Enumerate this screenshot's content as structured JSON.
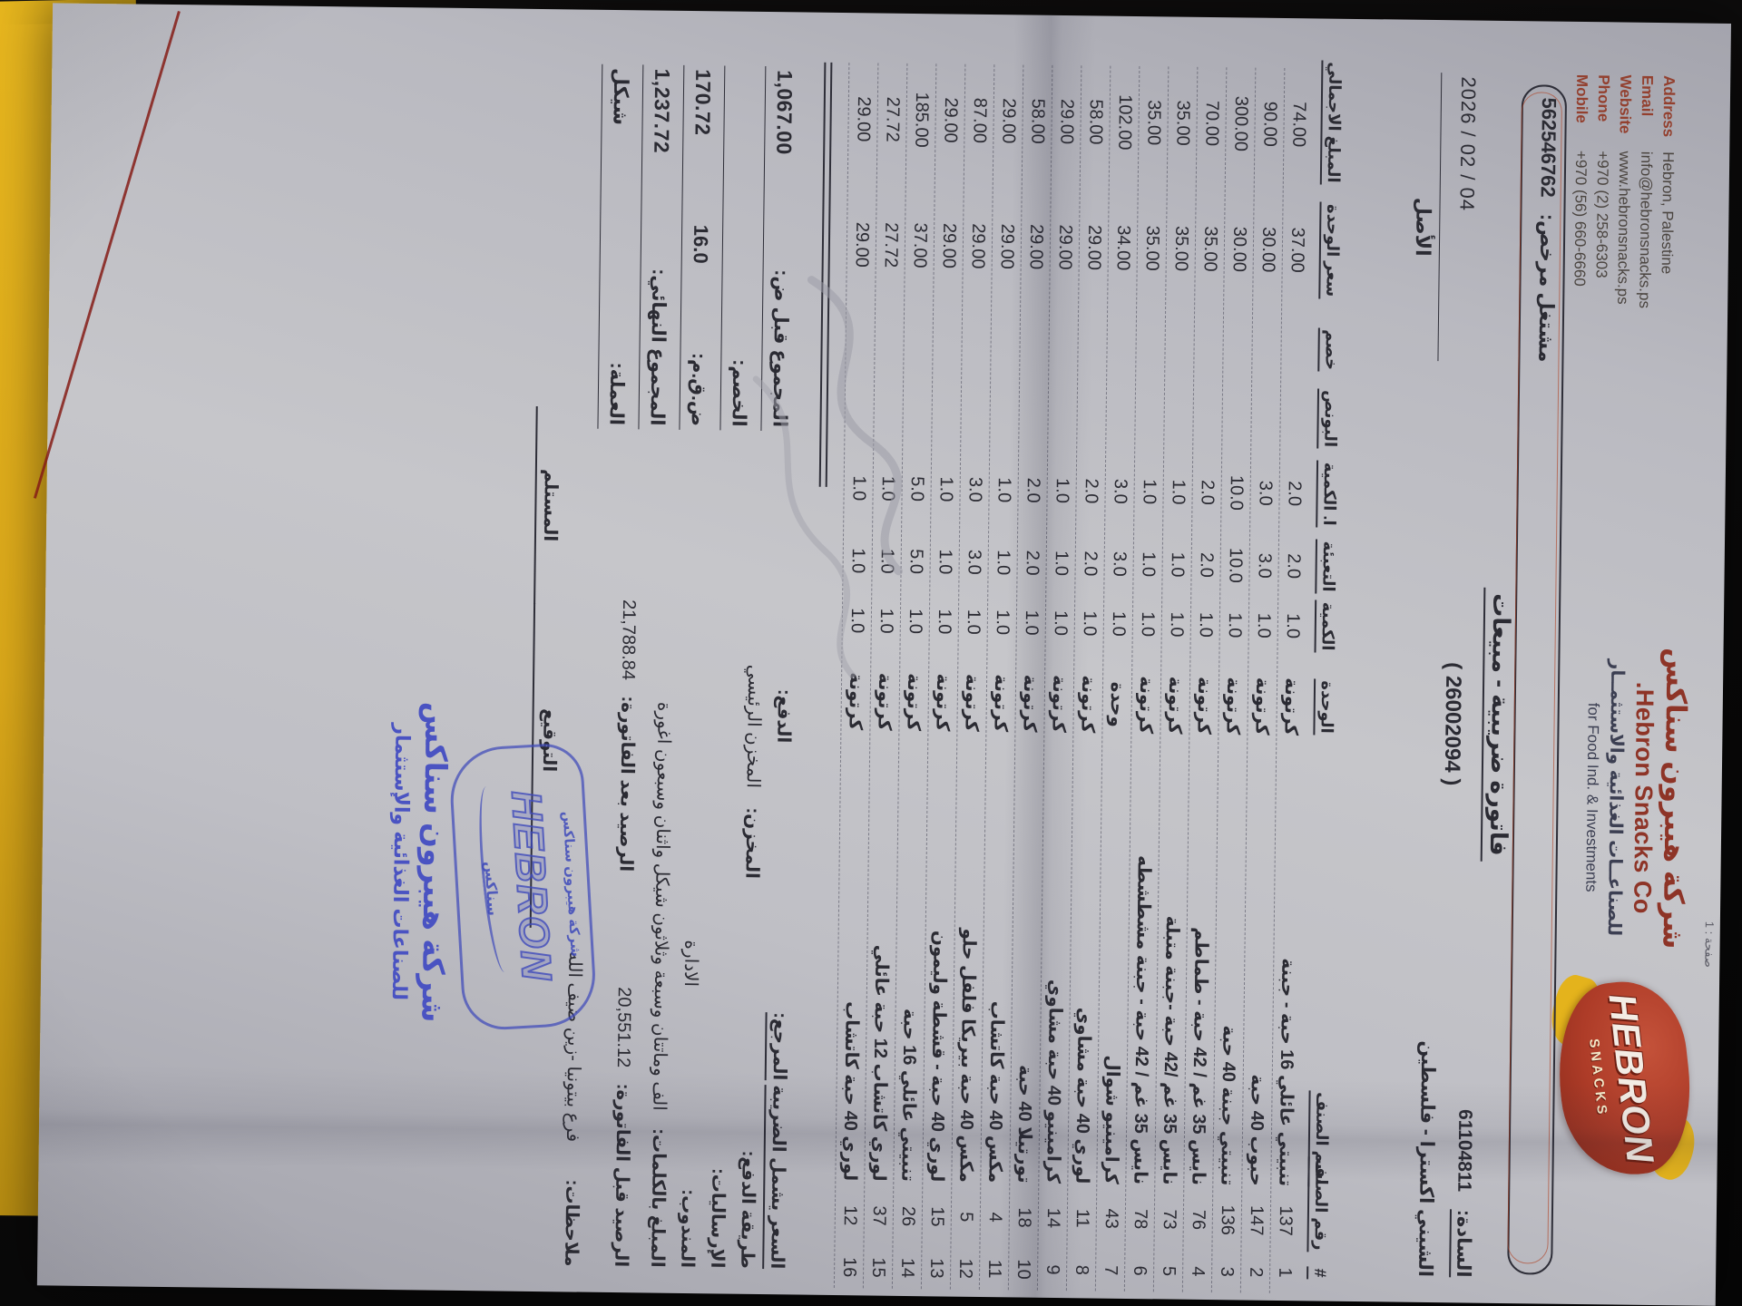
{
  "page_label": "صفحة : 1",
  "header": {
    "contact": [
      {
        "label": "Address",
        "value": "Hebron, Palestine"
      },
      {
        "label": "Email",
        "value": "info@hebronsnacks.ps"
      },
      {
        "label": "Website",
        "value": "www.hebronsnacks.ps"
      },
      {
        "label": "Phone",
        "value": "+970 (2) 258-6303"
      },
      {
        "label": "Mobile",
        "value": "+970 (56) 660-6660"
      }
    ],
    "company_ar": "شركة هيبرون سناكس",
    "company_en": "Hebron Snacks Co.",
    "tagline_ar": "للصناعــات الغذائية والاستثمــار",
    "tagline_en": "for Food Ind. & Investments",
    "logo_text": "HEBRON",
    "logo_subtext": "SNACKS",
    "license_label": "مشتغل مرخص:",
    "license_number": "562546762"
  },
  "invoice": {
    "title": "فاتورة ضريبية - مبيعات",
    "number": "( 26002094 )",
    "copy_label": "الأصل",
    "date": "2026 / 02 / 04",
    "customer_label": "السادة:",
    "customer_number": "61104811",
    "customer_name": "الشيني اكسترا - فلسطين"
  },
  "table": {
    "headers": [
      "#",
      "رقم الصنف",
      "اسم الصنف",
      "الوحدة",
      "الكمية",
      "التعبئة",
      "ا. الكمية",
      "البونص",
      "خصم",
      "سعر الوحدة",
      "المبلغ الاجمالي"
    ],
    "rows": [
      [
        "1",
        "137",
        "تنبيتي عائلي 16 حبة - جبنة",
        "كرتونة",
        "1.0",
        "2.0",
        "2.0",
        "",
        "",
        "37.00",
        "74.00"
      ],
      [
        "2",
        "147",
        "حبوب 40 حبة",
        "كرتونة",
        "1.0",
        "3.0",
        "3.0",
        "",
        "",
        "30.00",
        "90.00"
      ],
      [
        "3",
        "136",
        "تنبيتي جبنة 40 حبة",
        "كرتونة",
        "1.0",
        "10.0",
        "10.0",
        "",
        "",
        "30.00",
        "300.00"
      ],
      [
        "4",
        "76",
        "نايس 35 غم / 42 حبة - طماطم",
        "كرتونة",
        "1.0",
        "2.0",
        "2.0",
        "",
        "",
        "35.00",
        "70.00"
      ],
      [
        "5",
        "73",
        "نايس 35 غم /42 حبة -جبنة متبلة",
        "كرتونة",
        "1.0",
        "1.0",
        "1.0",
        "",
        "",
        "35.00",
        "35.00"
      ],
      [
        "6",
        "78",
        "نايس 35 غم / 42 حبة - جبنة مشطشطه",
        "كرتونة",
        "1.0",
        "1.0",
        "1.0",
        "",
        "",
        "35.00",
        "35.00"
      ],
      [
        "7",
        "43",
        "كرامينيو شوال",
        "وحدة",
        "1.0",
        "3.0",
        "3.0",
        "",
        "",
        "34.00",
        "102.00"
      ],
      [
        "8",
        "11",
        "لوري 40 حبة مشاوي",
        "كرتونة",
        "1.0",
        "2.0",
        "2.0",
        "",
        "",
        "29.00",
        "58.00"
      ],
      [
        "9",
        "14",
        "كرامينيو 40 حبة مشاوي",
        "كرتونة",
        "1.0",
        "1.0",
        "1.0",
        "",
        "",
        "29.00",
        "29.00"
      ],
      [
        "10",
        "18",
        "تورتيلا 40 حبة",
        "كرتونة",
        "1.0",
        "2.0",
        "2.0",
        "",
        "",
        "29.00",
        "58.00"
      ],
      [
        "11",
        "4",
        "مكس 40 حبة كاتشاب",
        "كرتونة",
        "1.0",
        "1.0",
        "1.0",
        "",
        "",
        "29.00",
        "29.00"
      ],
      [
        "12",
        "5",
        "مكس 40 حبة بيريكا فلفل حلو",
        "كرتونة",
        "1.0",
        "3.0",
        "3.0",
        "",
        "",
        "29.00",
        "87.00"
      ],
      [
        "13",
        "15",
        "لوري 40 حبة - قشطة وليمون",
        "كرتونة",
        "1.0",
        "1.0",
        "1.0",
        "",
        "",
        "29.00",
        "29.00"
      ],
      [
        "14",
        "26",
        "تنبيتي عائلي 16 حبة",
        "كرتونة",
        "1.0",
        "5.0",
        "5.0",
        "",
        "",
        "37.00",
        "185.00"
      ],
      [
        "15",
        "37",
        "لوري كاتشاب 12 حبة عائلي",
        "كرتونة",
        "1.0",
        "1.0",
        "1.0",
        "",
        "",
        "27.72",
        "27.72"
      ],
      [
        "16",
        "12",
        "لوري 40 حبة كاتشاب",
        "كرتونة",
        "1.0",
        "1.0",
        "1.0",
        "",
        "",
        "29.00",
        "29.00"
      ]
    ]
  },
  "totals": {
    "subtotal_label": "المجموع قبل ض:",
    "subtotal": "1,067.00",
    "discount_label": "الخصم:",
    "discount": "",
    "vat_label": "ض.ق.م:",
    "vat_rate": "16.0",
    "vat_amount": "170.72",
    "grand_label": "المجموع النهائي:",
    "grand_total": "1,237.72",
    "currency_label": "العملة:",
    "currency": "شيكل"
  },
  "footer": {
    "price_note": "السعر يشمل الضريبة",
    "reference_label": "المرجع:",
    "payment_label": "الدفع:",
    "payment_method_label": "طريقة الدفع:",
    "warehouse_label": "المخزن:",
    "warehouse": "المخزن الرئيسي",
    "shipments_label": "الإرساليات:",
    "salesman_label": "المندوب:",
    "salesman": "الادارة",
    "amount_words_label": "المبلغ بالكلمات:",
    "amount_words": "الف وماتتان وسبعة وثلاثون شيكل واثنان وسبعون اغورة",
    "balance_before_label": "الرصيد قبل الفاتورة:",
    "balance_before": "20,551.12",
    "balance_after_label": "الرصيد بعد الفاتورة:",
    "balance_after": "21,788.84",
    "notes_label": "ملاحظات:",
    "notes": "فرع بيتونيا -زين ضيف الله",
    "signature_label": "التوقيع",
    "receiver_label": "المستلم",
    "stamp_text": "HEBRON",
    "stamp_ar": "شركة هيبرون سناكس",
    "stamp_sub": "سناكس",
    "footer_company_ar": "شركة هيبرون سناكس",
    "footer_tagline_ar": "للصناعات الغذائية والإستثمار"
  },
  "colors": {
    "brand_red": "#8e3427",
    "stamp_blue": "#4a53c2",
    "folder_yellow": "#e7b61e"
  }
}
